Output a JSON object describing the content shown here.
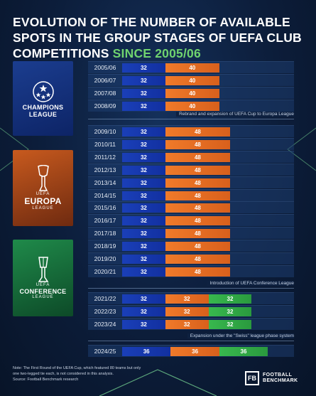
{
  "title_main": "Evolution of the number of available spots in the group stages of UEFA club competitions",
  "title_accent": "since 2005/06",
  "competitions": {
    "cl": {
      "line1": "CHAMPIONS",
      "line2": "LEAGUE",
      "color": "#1a3fb8"
    },
    "el": {
      "line0": "UEFA",
      "line1": "EUROPA",
      "line2": "LEAGUE",
      "color": "#f07a2a"
    },
    "ecl": {
      "line0": "UEFA",
      "line1": "CONFERENCE",
      "line2": "LEAGUE",
      "color": "#38b84e"
    }
  },
  "notes": {
    "rebrand": "Rebrand and expansion of UEFA Cup to Europa League",
    "conference": "Introduction of UEFA Conference League",
    "swiss": "Expansion under the \"Swiss\" league phase system"
  },
  "chart_data": {
    "type": "bar",
    "orientation": "horizontal-stacked",
    "categories": [
      "2005/06",
      "2006/07",
      "2007/08",
      "2008/09",
      "2009/10",
      "2010/11",
      "2011/12",
      "2012/13",
      "2013/14",
      "2014/15",
      "2015/16",
      "2016/17",
      "2017/18",
      "2018/19",
      "2019/20",
      "2020/21",
      "2021/22",
      "2022/23",
      "2023/24",
      "2024/25"
    ],
    "series": [
      {
        "name": "CHAMPIONS LEAGUE",
        "values": [
          32,
          32,
          32,
          32,
          32,
          32,
          32,
          32,
          32,
          32,
          32,
          32,
          32,
          32,
          32,
          32,
          32,
          32,
          32,
          36
        ]
      },
      {
        "name": "EUROPA LEAGUE",
        "values": [
          40,
          40,
          40,
          40,
          48,
          48,
          48,
          48,
          48,
          48,
          48,
          48,
          48,
          48,
          48,
          48,
          32,
          32,
          32,
          36
        ]
      },
      {
        "name": "CONFERENCE LEAGUE",
        "values": [
          0,
          0,
          0,
          0,
          0,
          0,
          0,
          0,
          0,
          0,
          0,
          0,
          0,
          0,
          0,
          0,
          32,
          32,
          32,
          36
        ]
      }
    ]
  },
  "footnote": {
    "line1": "Note: The First Round of the UEFA Cup, which featured 80 teams but only",
    "line2": "one two-legged tie each, is not considered in this analysis.",
    "line3": "Source: Football Benchmark research"
  },
  "brand": {
    "icon": "FB",
    "line1": "FOOTBALL",
    "line2": "BENCHMARK"
  }
}
